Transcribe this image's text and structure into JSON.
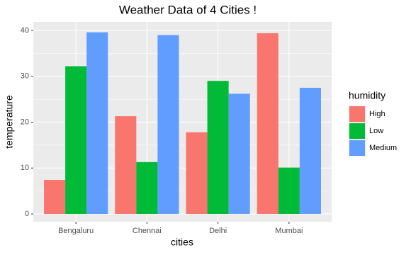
{
  "chart_data": {
    "type": "bar",
    "title": "Weather Data of 4 Cities !",
    "x_label": "cities",
    "y_label": "temperature",
    "categories": [
      "Bengaluru",
      "Chennai",
      "Delhi",
      "Mumbai"
    ],
    "series": [
      {
        "name": "High",
        "color": "#f8766d",
        "values": [
          7.4,
          21.3,
          17.8,
          39.4
        ]
      },
      {
        "name": "Low",
        "color": "#00ba38",
        "values": [
          32.2,
          11.3,
          29.0,
          10.1
        ]
      },
      {
        "name": "Medium",
        "color": "#619cff",
        "values": [
          39.6,
          39.0,
          26.2,
          27.5
        ]
      }
    ],
    "legend_title": "humidity",
    "ylim": [
      -1.7,
      41.85
    ],
    "yticks": [
      0,
      10,
      20,
      30,
      40
    ],
    "grid": true
  }
}
